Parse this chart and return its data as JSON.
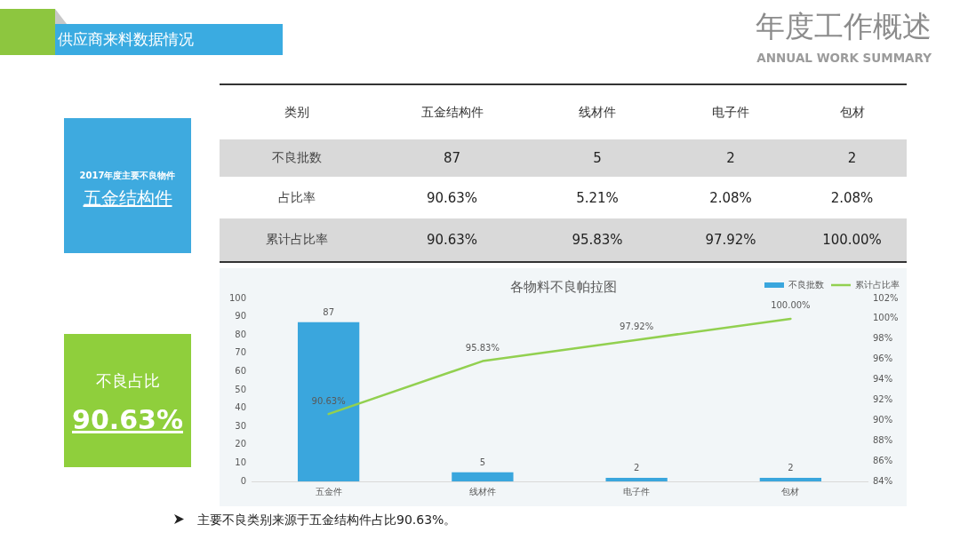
{
  "chart_data": [
    {
      "type": "other",
      "title": "供应商来料数据情况",
      "xlabel": "类别",
      "categories": [
        "五金结构件",
        "线材件",
        "电子件",
        "包材"
      ],
      "y_categories": [
        "不良批数",
        "占比率",
        "累计占比率"
      ],
      "cell_labels": [
        [
          "87",
          "5",
          "2",
          "2"
        ],
        [
          "90.63%",
          "5.21%",
          "2.08%",
          "2.08%"
        ],
        [
          "90.63%",
          "95.83%",
          "97.92%",
          "100.00%"
        ]
      ],
      "annotations": [
        "年度工作概述",
        "ANNUAL WORK SUMMARY",
        "2017年度主要不良物件",
        "五金结构件",
        "不良占比",
        "90.63%",
        "主要不良类别来源于五金结构件占比90.63%。"
      ]
    },
    {
      "type": "bar",
      "title": "各物料不良帕拉图",
      "categories": [
        "五金件",
        "线材件",
        "电子件",
        "包材"
      ],
      "series": [
        {
          "name": "不良批数",
          "color": "#3aa6dd",
          "values": [
            87,
            5,
            2,
            2
          ],
          "value_labels": [
            "87",
            "5",
            "2",
            "2"
          ]
        },
        {
          "name": "累计占比率",
          "type": "line",
          "axis": "y2",
          "color": "#92d050",
          "values": [
            90.63,
            95.83,
            97.92,
            100.0
          ],
          "value_labels": [
            "90.63%",
            "95.83%",
            "97.92%",
            "100.00%"
          ]
        }
      ],
      "ylim": [
        0,
        100
      ],
      "yticks": [
        0,
        10,
        20,
        30,
        40,
        50,
        60,
        70,
        80,
        90,
        100
      ],
      "y2lim": [
        84,
        102
      ],
      "y2ticks": [
        {
          "value": 84,
          "label": "84%"
        },
        {
          "value": 86,
          "label": "86%"
        },
        {
          "value": 88,
          "label": "88%"
        },
        {
          "value": 90,
          "label": "90%"
        },
        {
          "value": 92,
          "label": "92%"
        },
        {
          "value": 94,
          "label": "94%"
        },
        {
          "value": 96,
          "label": "96%"
        },
        {
          "value": 98,
          "label": "98%"
        },
        {
          "value": 100,
          "label": "100%"
        },
        {
          "value": 102,
          "label": "102%"
        }
      ],
      "legend": "top right"
    }
  ]
}
